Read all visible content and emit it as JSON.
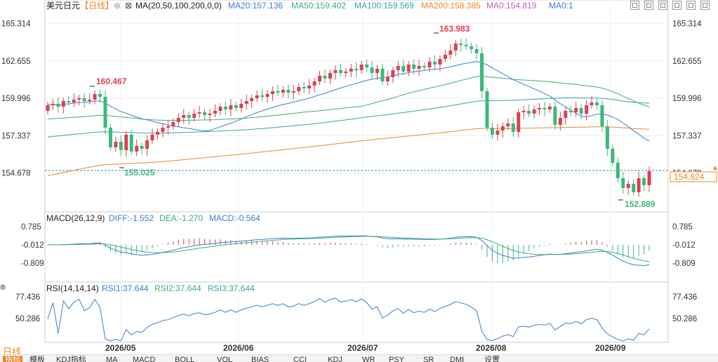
{
  "header": {
    "symbol": "美元日元",
    "period_tag": "【日线】",
    "ma_label": "MA(20,50,100,200,0,0)",
    "ma20": "MA20:157.136",
    "ma50": "MA50:159.402",
    "ma100": "MA100:159.569",
    "ma200": "MA200:158.385",
    "ma0a": "MA0:154.819",
    "ma0b": "MA0:1"
  },
  "colors": {
    "up": "#d9434f",
    "down": "#3cb87e",
    "ma20": "#3d7ec9",
    "ma50": "#3cae7a",
    "ma100": "#34a6a6",
    "ma200": "#e8892a",
    "ma0": "#c95fb8",
    "orange": "#e8892a"
  },
  "price_axis": {
    "ticks": [
      "165.314",
      "162.655",
      "159.996",
      "157.337",
      "154.678"
    ],
    "current": "154.824"
  },
  "annotations": {
    "high1": "160.467",
    "low1": "155.025",
    "high2": "163.983",
    "low2": "152.889"
  },
  "macd": {
    "label": "MACD(26,12,9)",
    "diff": "DIFF:-1.552",
    "dea": "DEA:-1.270",
    "macd": "MACD:-0.564",
    "ticks": [
      "0.785",
      "-0.012",
      "-0.809"
    ]
  },
  "rsi": {
    "label": "RSI(14,14,14)",
    "rsi1": "RSI1:37.644",
    "rsi2": "RSI2:37.644",
    "rsi3": "RSI3:37.644",
    "ticks": [
      "77.436",
      "50.286"
    ]
  },
  "x_axis": {
    "labels": [
      "2026/05",
      "2026/06",
      "2026/07",
      "2026/08",
      "2026/09"
    ]
  },
  "bottom": {
    "period": "日线",
    "tabs": [
      "指标",
      "模板",
      "KDJ指标",
      "MA",
      "MACD",
      "BOLL",
      "VOL",
      "BIAS",
      "CCI",
      "KDJ",
      "WR",
      "PSY",
      "SR",
      "DMI",
      "设置"
    ]
  },
  "chart_data": [
    {
      "type": "candlestick",
      "title": "美元日元【日线】",
      "y_ticks": [
        165.314,
        162.655,
        159.996,
        157.337,
        154.678
      ],
      "ylim": [
        152.0,
        166.0
      ],
      "x_ticks": [
        "2026/05",
        "2026/06",
        "2026/07",
        "2026/08",
        "2026/09"
      ],
      "current_price": 154.824,
      "series_ma": [
        {
          "name": "MA20",
          "last": 157.136
        },
        {
          "name": "MA50",
          "last": 159.402
        },
        {
          "name": "MA100",
          "last": 159.569
        },
        {
          "name": "MA200",
          "last": 158.385
        },
        {
          "name": "MA0",
          "last": 154.819
        }
      ],
      "annotations": [
        {
          "text": "160.467",
          "value": 160.467
        },
        {
          "text": "155.025",
          "value": 155.025
        },
        {
          "text": "163.983",
          "value": 163.983
        },
        {
          "text": "152.889",
          "value": 152.889
        }
      ],
      "close": [
        159.5,
        159.6,
        159.4,
        159.8,
        159.7,
        159.9,
        160.0,
        159.8,
        159.9,
        160.3,
        160.1,
        157.9,
        156.5,
        156.9,
        156.3,
        157.4,
        156.2,
        156.6,
        156.4,
        157.0,
        157.4,
        157.6,
        157.9,
        158.0,
        158.3,
        158.6,
        158.8,
        158.6,
        158.9,
        159.0,
        158.8,
        158.9,
        159.1,
        159.4,
        159.2,
        159.5,
        159.3,
        159.6,
        159.8,
        160.0,
        160.2,
        160.1,
        160.3,
        160.5,
        160.4,
        160.6,
        160.4,
        160.5,
        160.8,
        160.7,
        160.9,
        161.2,
        161.6,
        161.4,
        161.8,
        162.0,
        161.8,
        161.9,
        162.1,
        162.0,
        162.4,
        162.2,
        161.8,
        162.1,
        161.2,
        161.5,
        162.0,
        162.3,
        161.9,
        162.4,
        162.1,
        162.3,
        162.2,
        162.6,
        162.4,
        162.8,
        163.1,
        163.4,
        163.9,
        163.8,
        163.7,
        163.5,
        163.2,
        160.5,
        157.9,
        157.4,
        157.7,
        158.0,
        158.2,
        157.6,
        159.0,
        159.1,
        158.9,
        159.2,
        159.3,
        159.2,
        159.4,
        158.1,
        158.6,
        159.1,
        159.0,
        159.3,
        158.9,
        159.5,
        159.7,
        159.5,
        158.0,
        156.4,
        155.4,
        154.3,
        153.6,
        153.9,
        153.3,
        154.3,
        153.8,
        154.8
      ],
      "open": [
        159.1,
        159.5,
        159.6,
        159.4,
        159.8,
        159.7,
        159.9,
        160.0,
        159.8,
        159.9,
        160.3,
        160.1,
        157.9,
        156.5,
        156.9,
        156.3,
        157.4,
        156.2,
        156.6,
        156.4,
        157.0,
        157.4,
        157.6,
        157.9,
        158.0,
        158.3,
        158.6,
        158.8,
        158.6,
        158.9,
        159.0,
        158.8,
        158.9,
        159.1,
        159.4,
        159.2,
        159.5,
        159.3,
        159.6,
        159.8,
        160.0,
        160.2,
        160.1,
        160.3,
        160.5,
        160.4,
        160.6,
        160.4,
        160.5,
        160.8,
        160.7,
        160.9,
        161.2,
        161.6,
        161.4,
        161.8,
        162.0,
        161.8,
        161.9,
        162.1,
        162.0,
        162.4,
        162.2,
        161.8,
        162.1,
        161.2,
        161.5,
        162.0,
        162.3,
        161.9,
        162.4,
        162.1,
        162.3,
        162.2,
        162.6,
        162.4,
        162.8,
        163.1,
        163.4,
        163.9,
        163.8,
        163.7,
        163.5,
        163.2,
        160.5,
        157.9,
        157.4,
        157.7,
        158.0,
        158.2,
        157.6,
        159.0,
        159.1,
        158.9,
        159.2,
        159.3,
        159.2,
        159.4,
        158.1,
        158.6,
        159.1,
        159.0,
        159.3,
        158.9,
        159.5,
        159.7,
        159.5,
        158.0,
        156.4,
        155.4,
        154.3,
        153.6,
        153.9,
        153.3,
        154.3,
        153.8
      ]
    },
    {
      "type": "line",
      "title": "MACD(26,12,9)",
      "y_ticks": [
        0.785,
        -0.012,
        -0.809
      ],
      "series": [
        {
          "name": "DIFF",
          "last": -1.552
        },
        {
          "name": "DEA",
          "last": -1.27
        },
        {
          "name": "MACD",
          "last": -0.564
        }
      ]
    },
    {
      "type": "line",
      "title": "RSI(14,14,14)",
      "y_ticks": [
        77.436,
        50.286
      ],
      "series": [
        {
          "name": "RSI1",
          "last": 37.644
        },
        {
          "name": "RSI2",
          "last": 37.644
        },
        {
          "name": "RSI3",
          "last": 37.644
        }
      ]
    }
  ]
}
